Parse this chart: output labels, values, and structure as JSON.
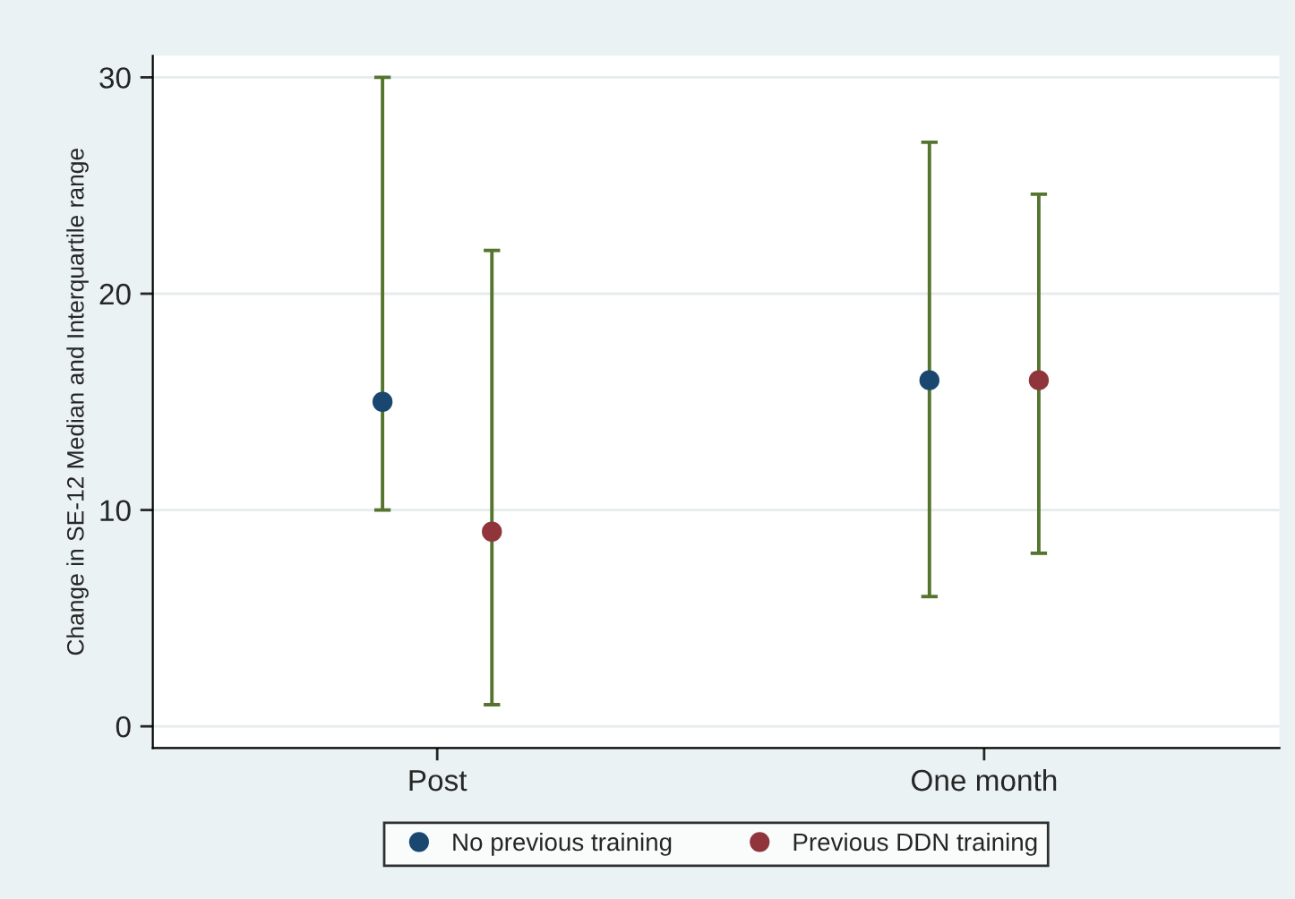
{
  "chart_data": {
    "type": "scatter",
    "ylabel": "Change in SE-12 Median and Interquartile range",
    "categories": [
      "Post",
      "One month"
    ],
    "series": [
      {
        "name": "No previous training",
        "color": "#1a476f",
        "values": [
          15,
          16
        ],
        "errors": [
          [
            10,
            30
          ],
          [
            6,
            27
          ]
        ]
      },
      {
        "name": "Previous DDN training",
        "color": "#90353b",
        "values": [
          9,
          16
        ],
        "errors": [
          [
            1,
            22
          ],
          [
            8,
            24.6
          ]
        ]
      }
    ],
    "ylim": [
      -1,
      31
    ],
    "yticks": [
      0,
      10,
      20,
      30
    ],
    "grid": "y",
    "legend": "bottom",
    "marker": "circle"
  }
}
